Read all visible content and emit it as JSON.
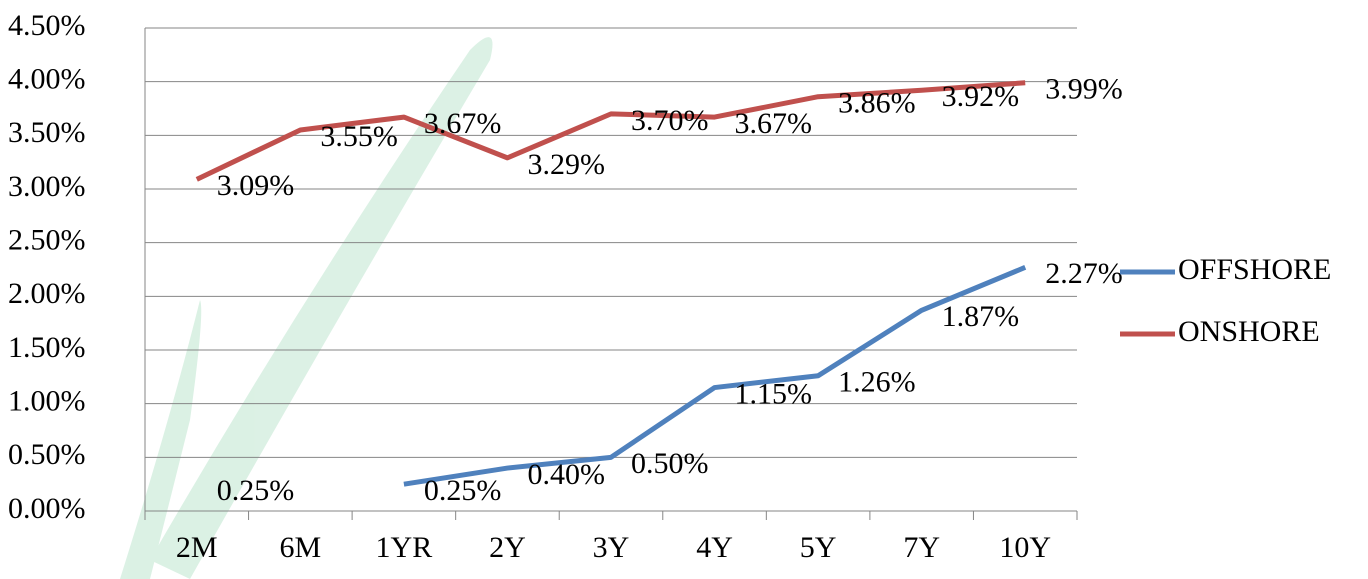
{
  "chart_data": {
    "type": "line",
    "categories": [
      "2M",
      "6M",
      "1YR",
      "2Y",
      "3Y",
      "4Y",
      "5Y",
      "7Y",
      "10Y"
    ],
    "series": [
      {
        "name": "OFFSHORE",
        "color": "#4f81bd",
        "values": [
          0.25,
          null,
          0.25,
          0.4,
          0.5,
          1.15,
          1.26,
          1.87,
          2.27
        ],
        "value_labels": [
          "0.25%",
          null,
          "0.25%",
          "0.40%",
          "0.50%",
          "1.15%",
          "1.26%",
          "1.87%",
          "2.27%"
        ]
      },
      {
        "name": "ONSHORE",
        "color": "#c0504d",
        "values": [
          3.09,
          3.55,
          3.67,
          3.29,
          3.7,
          3.67,
          3.86,
          3.92,
          3.99
        ],
        "value_labels": [
          "3.09%",
          "3.55%",
          "3.67%",
          "3.29%",
          "3.70%",
          "3.67%",
          "3.86%",
          "3.92%",
          "3.99%"
        ]
      }
    ],
    "ylim": [
      0,
      4.5
    ],
    "yticks": [
      {
        "value": 0,
        "label": "0.00%"
      },
      {
        "value": 0.5,
        "label": "0.50%"
      },
      {
        "value": 1,
        "label": "1.00%"
      },
      {
        "value": 1.5,
        "label": "1.50%"
      },
      {
        "value": 2,
        "label": "2.00%"
      },
      {
        "value": 2.5,
        "label": "2.50%"
      },
      {
        "value": 3,
        "label": "3.00%"
      },
      {
        "value": 3.5,
        "label": "3.50%"
      },
      {
        "value": 4,
        "label": "4.00%"
      },
      {
        "value": 4.5,
        "label": "4.50%"
      }
    ],
    "grid": true,
    "legend": "right"
  }
}
